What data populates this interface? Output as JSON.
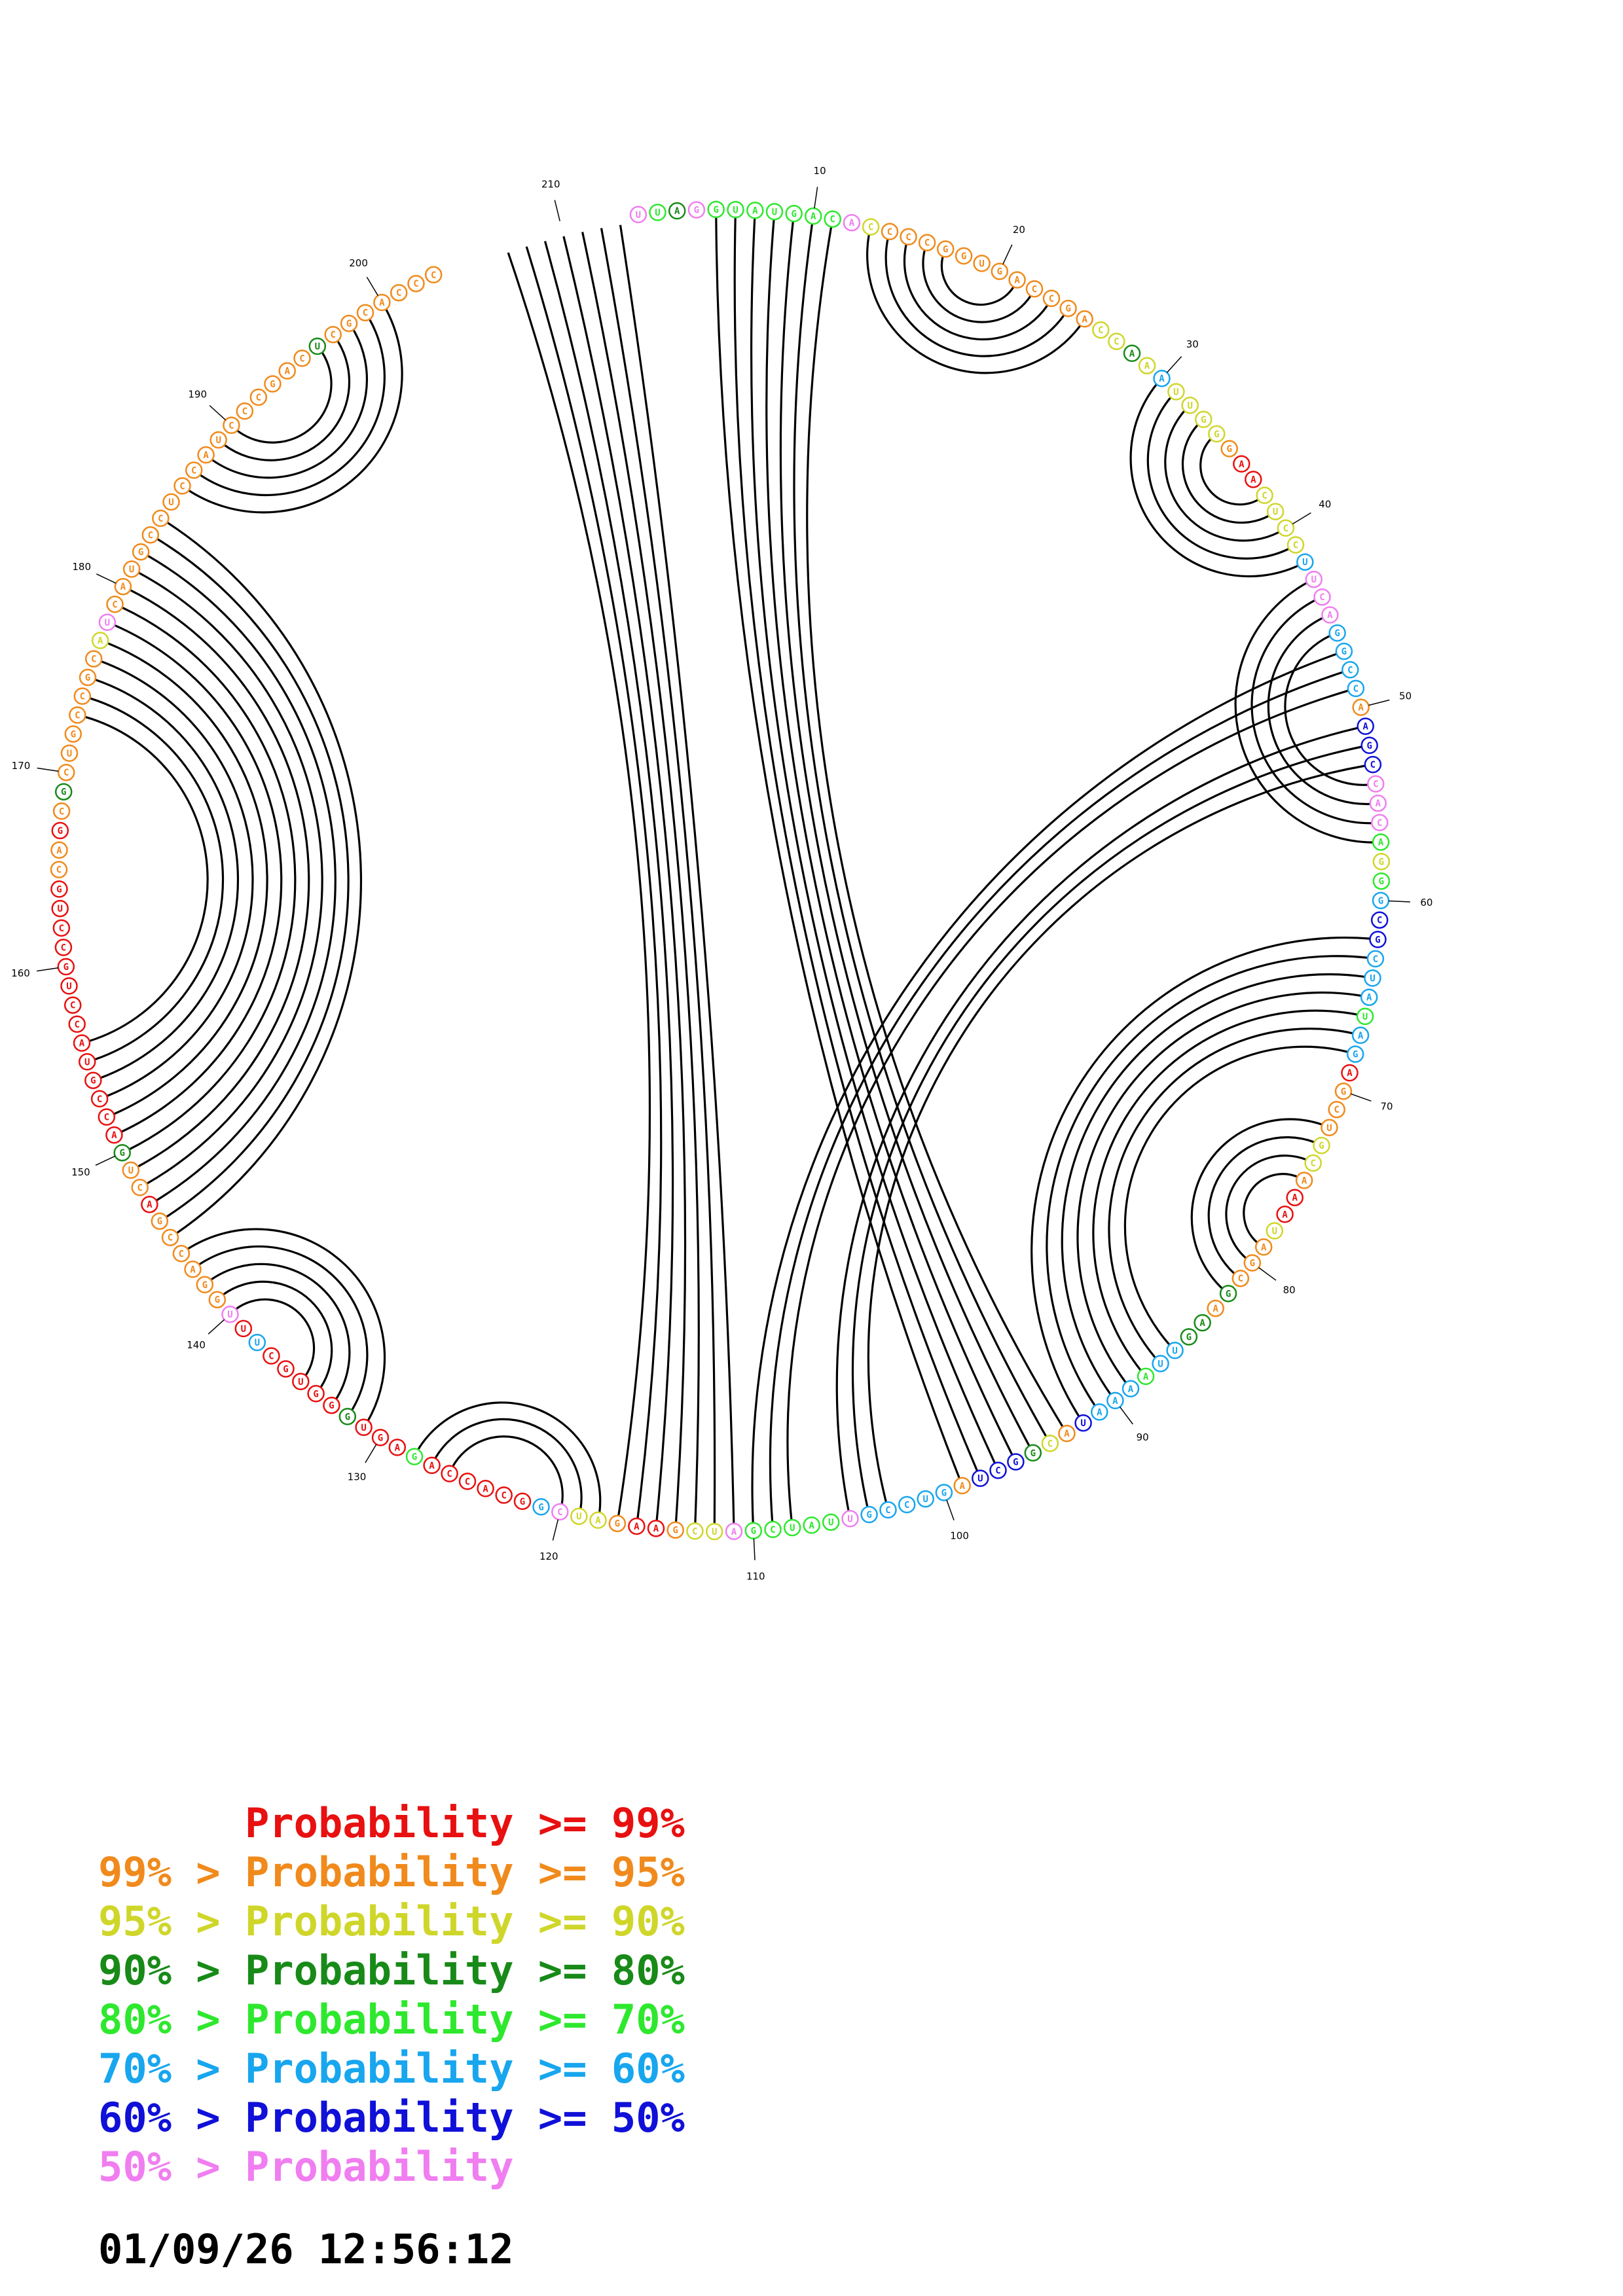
{
  "diagram": {
    "type": "circular-rna-structure-plot",
    "sequence_length": 213,
    "position_labels": [
      "10",
      "20",
      "30",
      "40",
      "50",
      "60",
      "70",
      "80",
      "90",
      "100",
      "110",
      "120",
      "130",
      "140",
      "150",
      "160",
      "170",
      "180",
      "190",
      "200",
      "210"
    ],
    "base_pairs": [
      [
        5,
        99
      ],
      [
        6,
        98
      ],
      [
        7,
        97
      ],
      [
        8,
        96
      ],
      [
        9,
        95
      ],
      [
        10,
        94
      ],
      [
        11,
        93
      ],
      [
        13,
        25
      ],
      [
        14,
        24
      ],
      [
        15,
        23
      ],
      [
        16,
        22
      ],
      [
        17,
        21
      ],
      [
        30,
        42
      ],
      [
        31,
        41
      ],
      [
        32,
        40
      ],
      [
        33,
        39
      ],
      [
        34,
        38
      ],
      [
        43,
        57
      ],
      [
        44,
        56
      ],
      [
        45,
        55
      ],
      [
        46,
        54
      ],
      [
        47,
        110
      ],
      [
        48,
        109
      ],
      [
        49,
        108
      ],
      [
        51,
        105
      ],
      [
        52,
        104
      ],
      [
        53,
        103
      ],
      [
        62,
        92
      ],
      [
        63,
        91
      ],
      [
        64,
        90
      ],
      [
        65,
        89
      ],
      [
        66,
        88
      ],
      [
        67,
        87
      ],
      [
        68,
        86
      ],
      [
        72,
        82
      ],
      [
        73,
        81
      ],
      [
        74,
        80
      ],
      [
        75,
        79
      ],
      [
        111,
        213
      ],
      [
        112,
        212
      ],
      [
        113,
        211
      ],
      [
        114,
        210
      ],
      [
        115,
        209
      ],
      [
        116,
        208
      ],
      [
        117,
        207
      ],
      [
        118,
        128
      ],
      [
        119,
        127
      ],
      [
        120,
        126
      ],
      [
        131,
        144
      ],
      [
        132,
        143
      ],
      [
        133,
        142
      ],
      [
        134,
        141
      ],
      [
        135,
        140
      ],
      [
        145,
        184
      ],
      [
        146,
        183
      ],
      [
        147,
        182
      ],
      [
        148,
        181
      ],
      [
        149,
        180
      ],
      [
        150,
        179
      ],
      [
        151,
        178
      ],
      [
        152,
        177
      ],
      [
        153,
        176
      ],
      [
        154,
        175
      ],
      [
        155,
        174
      ],
      [
        156,
        173
      ],
      [
        186,
        200
      ],
      [
        187,
        199
      ],
      [
        188,
        198
      ],
      [
        189,
        197
      ],
      [
        190,
        196
      ]
    ],
    "bases": [
      {
        "l": "U",
        "c": "pink"
      },
      {
        "l": "U",
        "c": "green"
      },
      {
        "l": "A",
        "c": "dkgreen"
      },
      {
        "l": "G",
        "c": "pink"
      },
      {
        "l": "G",
        "c": "green"
      },
      {
        "l": "U",
        "c": "green"
      },
      {
        "l": "A",
        "c": "green"
      },
      {
        "l": "U",
        "c": "green"
      },
      {
        "l": "G",
        "c": "green"
      },
      {
        "l": "A",
        "c": "green"
      },
      {
        "l": "C",
        "c": "green"
      },
      {
        "l": "A",
        "c": "pink"
      },
      {
        "l": "C",
        "c": "yellow"
      },
      {
        "l": "C",
        "c": "orange"
      },
      {
        "l": "C",
        "c": "orange"
      },
      {
        "l": "C",
        "c": "orange"
      },
      {
        "l": "G",
        "c": "orange"
      },
      {
        "l": "G",
        "c": "orange"
      },
      {
        "l": "U",
        "c": "orange"
      },
      {
        "l": "G",
        "c": "orange"
      },
      {
        "l": "A",
        "c": "orange"
      },
      {
        "l": "C",
        "c": "orange"
      },
      {
        "l": "C",
        "c": "orange"
      },
      {
        "l": "G",
        "c": "orange"
      },
      {
        "l": "A",
        "c": "orange"
      },
      {
        "l": "C",
        "c": "yellow"
      },
      {
        "l": "C",
        "c": "yellow"
      },
      {
        "l": "A",
        "c": "dkgreen"
      },
      {
        "l": "A",
        "c": "yellow"
      },
      {
        "l": "A",
        "c": "blue"
      },
      {
        "l": "U",
        "c": "yellow"
      },
      {
        "l": "U",
        "c": "yellow"
      },
      {
        "l": "G",
        "c": "yellow"
      },
      {
        "l": "G",
        "c": "yellow"
      },
      {
        "l": "G",
        "c": "orange"
      },
      {
        "l": "A",
        "c": "red"
      },
      {
        "l": "A",
        "c": "red"
      },
      {
        "l": "C",
        "c": "yellow"
      },
      {
        "l": "U",
        "c": "yellow"
      },
      {
        "l": "C",
        "c": "yellow"
      },
      {
        "l": "C",
        "c": "yellow"
      },
      {
        "l": "U",
        "c": "blue"
      },
      {
        "l": "U",
        "c": "pink"
      },
      {
        "l": "C",
        "c": "pink"
      },
      {
        "l": "A",
        "c": "pink"
      },
      {
        "l": "G",
        "c": "blue"
      },
      {
        "l": "G",
        "c": "blue"
      },
      {
        "l": "C",
        "c": "blue"
      },
      {
        "l": "C",
        "c": "blue"
      },
      {
        "l": "A",
        "c": "orange"
      },
      {
        "l": "A",
        "c": "navy"
      },
      {
        "l": "G",
        "c": "navy"
      },
      {
        "l": "C",
        "c": "navy"
      },
      {
        "l": "C",
        "c": "pink"
      },
      {
        "l": "A",
        "c": "pink"
      },
      {
        "l": "C",
        "c": "pink"
      },
      {
        "l": "A",
        "c": "green"
      },
      {
        "l": "G",
        "c": "yellow"
      },
      {
        "l": "G",
        "c": "green"
      },
      {
        "l": "G",
        "c": "blue"
      },
      {
        "l": "C",
        "c": "navy"
      },
      {
        "l": "G",
        "c": "navy"
      },
      {
        "l": "C",
        "c": "blue"
      },
      {
        "l": "U",
        "c": "blue"
      },
      {
        "l": "A",
        "c": "blue"
      },
      {
        "l": "U",
        "c": "green"
      },
      {
        "l": "A",
        "c": "blue"
      },
      {
        "l": "G",
        "c": "blue"
      },
      {
        "l": "A",
        "c": "red"
      },
      {
        "l": "G",
        "c": "orange"
      },
      {
        "l": "C",
        "c": "orange"
      },
      {
        "l": "U",
        "c": "orange"
      },
      {
        "l": "G",
        "c": "yellow"
      },
      {
        "l": "C",
        "c": "yellow"
      },
      {
        "l": "A",
        "c": "orange"
      },
      {
        "l": "A",
        "c": "red"
      },
      {
        "l": "A",
        "c": "red"
      },
      {
        "l": "U",
        "c": "yellow"
      },
      {
        "l": "A",
        "c": "orange"
      },
      {
        "l": "G",
        "c": "orange"
      },
      {
        "l": "C",
        "c": "orange"
      },
      {
        "l": "G",
        "c": "dkgreen"
      },
      {
        "l": "A",
        "c": "orange"
      },
      {
        "l": "A",
        "c": "dkgreen"
      },
      {
        "l": "G",
        "c": "dkgreen"
      },
      {
        "l": "U",
        "c": "blue"
      },
      {
        "l": "U",
        "c": "blue"
      },
      {
        "l": "A",
        "c": "green"
      },
      {
        "l": "A",
        "c": "blue"
      },
      {
        "l": "A",
        "c": "blue"
      },
      {
        "l": "A",
        "c": "blue"
      },
      {
        "l": "U",
        "c": "navy"
      },
      {
        "l": "A",
        "c": "orange"
      },
      {
        "l": "C",
        "c": "yellow"
      },
      {
        "l": "G",
        "c": "dkgreen"
      },
      {
        "l": "G",
        "c": "navy"
      },
      {
        "l": "C",
        "c": "navy"
      },
      {
        "l": "U",
        "c": "navy"
      },
      {
        "l": "A",
        "c": "orange"
      },
      {
        "l": "G",
        "c": "blue"
      },
      {
        "l": "U",
        "c": "blue"
      },
      {
        "l": "C",
        "c": "blue"
      },
      {
        "l": "C",
        "c": "blue"
      },
      {
        "l": "G",
        "c": "blue"
      },
      {
        "l": "U",
        "c": "pink"
      },
      {
        "l": "U",
        "c": "green"
      },
      {
        "l": "A",
        "c": "green"
      },
      {
        "l": "U",
        "c": "green"
      },
      {
        "l": "C",
        "c": "green"
      },
      {
        "l": "G",
        "c": "green"
      },
      {
        "l": "A",
        "c": "pink"
      },
      {
        "l": "U",
        "c": "yellow"
      },
      {
        "l": "C",
        "c": "yellow"
      },
      {
        "l": "G",
        "c": "orange"
      },
      {
        "l": "A",
        "c": "red"
      },
      {
        "l": "A",
        "c": "red"
      },
      {
        "l": "G",
        "c": "orange"
      },
      {
        "l": "A",
        "c": "yellow"
      },
      {
        "l": "U",
        "c": "yellow"
      },
      {
        "l": "C",
        "c": "pink"
      },
      {
        "l": "G",
        "c": "blue"
      },
      {
        "l": "G",
        "c": "red"
      },
      {
        "l": "C",
        "c": "red"
      },
      {
        "l": "A",
        "c": "red"
      },
      {
        "l": "C",
        "c": "red"
      },
      {
        "l": "C",
        "c": "red"
      },
      {
        "l": "A",
        "c": "red"
      },
      {
        "l": "G",
        "c": "green"
      },
      {
        "l": "A",
        "c": "red"
      },
      {
        "l": "G",
        "c": "red"
      },
      {
        "l": "U",
        "c": "red"
      },
      {
        "l": "G",
        "c": "dkgreen"
      },
      {
        "l": "G",
        "c": "red"
      },
      {
        "l": "G",
        "c": "red"
      },
      {
        "l": "U",
        "c": "red"
      },
      {
        "l": "G",
        "c": "red"
      },
      {
        "l": "C",
        "c": "red"
      },
      {
        "l": "U",
        "c": "blue"
      },
      {
        "l": "U",
        "c": "red"
      },
      {
        "l": "U",
        "c": "pink"
      },
      {
        "l": "G",
        "c": "orange"
      },
      {
        "l": "G",
        "c": "orange"
      },
      {
        "l": "A",
        "c": "orange"
      },
      {
        "l": "C",
        "c": "orange"
      },
      {
        "l": "C",
        "c": "orange"
      },
      {
        "l": "G",
        "c": "orange"
      },
      {
        "l": "A",
        "c": "red"
      },
      {
        "l": "C",
        "c": "orange"
      },
      {
        "l": "U",
        "c": "orange"
      },
      {
        "l": "G",
        "c": "dkgreen"
      },
      {
        "l": "A",
        "c": "red"
      },
      {
        "l": "C",
        "c": "red"
      },
      {
        "l": "C",
        "c": "red"
      },
      {
        "l": "G",
        "c": "red"
      },
      {
        "l": "U",
        "c": "red"
      },
      {
        "l": "A",
        "c": "red"
      },
      {
        "l": "C",
        "c": "red"
      },
      {
        "l": "C",
        "c": "red"
      },
      {
        "l": "U",
        "c": "red"
      },
      {
        "l": "G",
        "c": "red"
      },
      {
        "l": "C",
        "c": "red"
      },
      {
        "l": "C",
        "c": "red"
      },
      {
        "l": "U",
        "c": "red"
      },
      {
        "l": "G",
        "c": "red"
      },
      {
        "l": "C",
        "c": "orange"
      },
      {
        "l": "A",
        "c": "orange"
      },
      {
        "l": "G",
        "c": "red"
      },
      {
        "l": "C",
        "c": "orange"
      },
      {
        "l": "G",
        "c": "dkgreen"
      },
      {
        "l": "C",
        "c": "orange"
      },
      {
        "l": "U",
        "c": "orange"
      },
      {
        "l": "G",
        "c": "orange"
      },
      {
        "l": "C",
        "c": "orange"
      },
      {
        "l": "C",
        "c": "orange"
      },
      {
        "l": "G",
        "c": "orange"
      },
      {
        "l": "C",
        "c": "orange"
      },
      {
        "l": "A",
        "c": "yellow"
      },
      {
        "l": "U",
        "c": "pink"
      },
      {
        "l": "C",
        "c": "orange"
      },
      {
        "l": "A",
        "c": "orange"
      },
      {
        "l": "U",
        "c": "orange"
      },
      {
        "l": "G",
        "c": "orange"
      },
      {
        "l": "C",
        "c": "orange"
      },
      {
        "l": "C",
        "c": "orange"
      },
      {
        "l": "U",
        "c": "orange"
      },
      {
        "l": "C",
        "c": "orange"
      },
      {
        "l": "C",
        "c": "orange"
      },
      {
        "l": "A",
        "c": "orange"
      },
      {
        "l": "U",
        "c": "orange"
      },
      {
        "l": "C",
        "c": "orange"
      },
      {
        "l": "C",
        "c": "orange"
      },
      {
        "l": "C",
        "c": "orange"
      },
      {
        "l": "G",
        "c": "orange"
      },
      {
        "l": "A",
        "c": "orange"
      },
      {
        "l": "C",
        "c": "orange"
      },
      {
        "l": "U",
        "c": "dkgreen"
      },
      {
        "l": "C",
        "c": "orange"
      },
      {
        "l": "G",
        "c": "orange"
      },
      {
        "l": "C",
        "c": "orange"
      },
      {
        "l": "A",
        "c": "orange"
      },
      {
        "l": "C",
        "c": "orange"
      },
      {
        "l": "C",
        "c": "orange"
      },
      {
        "l": "C",
        "c": "orange"
      }
    ]
  },
  "legend": [
    {
      "prefix": "",
      "label": "Probability >= 99%",
      "color": "#e81010"
    },
    {
      "prefix": "99% > ",
      "label": "Probability >= 95%",
      "color": "#f08a1c"
    },
    {
      "prefix": "95% > ",
      "label": "Probability >= 90%",
      "color": "#cfd62a"
    },
    {
      "prefix": "90% > ",
      "label": "Probability >= 80%",
      "color": "#188a18"
    },
    {
      "prefix": "80% > ",
      "label": "Probability >= 70%",
      "color": "#2ee82e"
    },
    {
      "prefix": "70% > ",
      "label": "Probability >= 60%",
      "color": "#18a6ee"
    },
    {
      "prefix": "60% > ",
      "label": "Probability >= 50%",
      "color": "#1010d8"
    },
    {
      "prefix": "50% > ",
      "label": "Probability",
      "color": "#f07ef0"
    }
  ],
  "colors": {
    "red": "#e81010",
    "orange": "#f08a1c",
    "yellow": "#cfd62a",
    "dkgreen": "#188a18",
    "green": "#2ee82e",
    "blue": "#18a6ee",
    "navy": "#1010d8",
    "pink": "#f07ef0"
  },
  "timestamp": "01/09/26 12:56:12"
}
